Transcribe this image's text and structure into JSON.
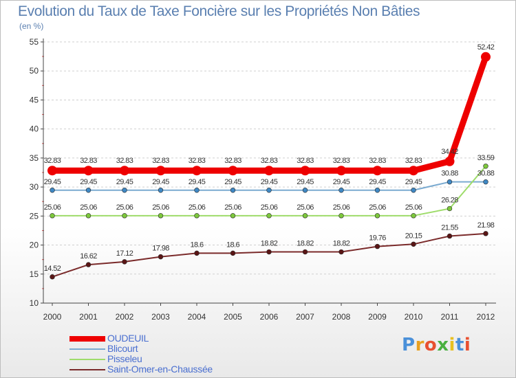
{
  "title": "Evolution du Taux de Taxe Foncière sur les Propriétés Non Bâties",
  "unit": "(en %)",
  "brand": {
    "text": "Proxiti",
    "letter_colors": [
      "#4a90d9",
      "#e8a020",
      "#e85030",
      "#4ab040",
      "#e8c020",
      "#4a90d9",
      "#e85030"
    ]
  },
  "chart_data": {
    "type": "line",
    "title": "Evolution du Taux de Taxe Foncière sur les Propriétés Non Bâties",
    "xlabel": "",
    "ylabel": "(en %)",
    "ylim": [
      10,
      55
    ],
    "yticks": [
      10,
      15,
      20,
      25,
      30,
      35,
      40,
      45,
      50,
      55
    ],
    "grid": "horizontal dashed",
    "categories": [
      "2000",
      "2001",
      "2002",
      "2003",
      "2004",
      "2005",
      "2006",
      "2007",
      "2008",
      "2009",
      "2010",
      "2011",
      "2012"
    ],
    "series": [
      {
        "name": "OUDEUIL",
        "color": "#ee0000",
        "emphasis": true,
        "values": [
          32.83,
          32.83,
          32.83,
          32.83,
          32.83,
          32.83,
          32.83,
          32.83,
          32.83,
          32.83,
          32.83,
          34.42,
          52.42
        ],
        "labels": [
          "32.83",
          "32.83",
          "32.83",
          "32.83",
          "32.83",
          "32.83",
          "32.83",
          "32.83",
          "32.83",
          "32.83",
          "32.83",
          "34.42",
          "52.42"
        ]
      },
      {
        "name": "Blicourt",
        "color": "#7aaad0",
        "marker": "#3f88c4",
        "values": [
          29.45,
          29.45,
          29.45,
          29.45,
          29.45,
          29.45,
          29.45,
          29.45,
          29.45,
          29.45,
          29.45,
          30.88,
          30.88
        ],
        "labels": [
          "29.45",
          "29.45",
          "29.45",
          "29.45",
          "29.45",
          "29.45",
          "29.45",
          "29.45",
          "29.45",
          "29.45",
          "29.45",
          "30.88",
          "30.88"
        ]
      },
      {
        "name": "Pisseleu",
        "color": "#9edc6a",
        "marker": "#7dc83c",
        "values": [
          25.06,
          25.06,
          25.06,
          25.06,
          25.06,
          25.06,
          25.06,
          25.06,
          25.06,
          25.06,
          25.06,
          26.28,
          33.59
        ],
        "labels": [
          "25.06",
          "25.06",
          "25.06",
          "25.06",
          "25.06",
          "25.06",
          "25.06",
          "25.06",
          "25.06",
          "25.06",
          "25.06",
          "26.28",
          "33.59"
        ]
      },
      {
        "name": "Saint-Omer-en-Chaussée",
        "color": "#7a2a2a",
        "marker": "#5a1515",
        "values": [
          14.52,
          16.62,
          17.12,
          17.98,
          18.6,
          18.6,
          18.82,
          18.82,
          18.82,
          19.76,
          20.15,
          21.55,
          21.98
        ],
        "labels": [
          "14.52",
          "16.62",
          "17.12",
          "17.98",
          "18.6",
          "18.6",
          "18.82",
          "18.82",
          "18.82",
          "19.76",
          "20.15",
          "21.55",
          "21.98"
        ]
      }
    ]
  }
}
